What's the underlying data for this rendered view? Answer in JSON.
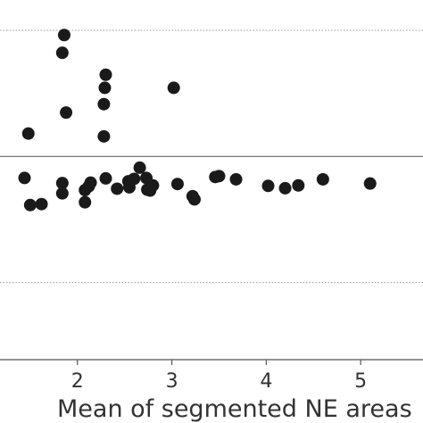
{
  "chart_data": {
    "type": "scatter",
    "xlabel": "Mean of segmented NE areas",
    "x_ticks": [
      2,
      3,
      4,
      5
    ],
    "xlim": [
      1.18,
      5.66
    ],
    "ylim": [
      -0.435,
      0.335
    ],
    "reference_lines": [
      {
        "y": 0.0,
        "style": "solid"
      },
      {
        "y": 0.27,
        "style": "dotted"
      },
      {
        "y": -0.27,
        "style": "dotted"
      }
    ],
    "color": "#1a1a1a",
    "points": [
      {
        "x": 1.86,
        "y": 0.26
      },
      {
        "x": 1.84,
        "y": 0.222
      },
      {
        "x": 2.3,
        "y": 0.175
      },
      {
        "x": 2.29,
        "y": 0.147
      },
      {
        "x": 3.02,
        "y": 0.147
      },
      {
        "x": 2.28,
        "y": 0.112
      },
      {
        "x": 1.88,
        "y": 0.094
      },
      {
        "x": 1.48,
        "y": 0.049
      },
      {
        "x": 2.28,
        "y": 0.043
      },
      {
        "x": 2.66,
        "y": -0.024
      },
      {
        "x": 1.44,
        "y": -0.046
      },
      {
        "x": 2.3,
        "y": -0.047
      },
      {
        "x": 2.73,
        "y": -0.046
      },
      {
        "x": 3.46,
        "y": -0.044
      },
      {
        "x": 3.5,
        "y": -0.042
      },
      {
        "x": 3.68,
        "y": -0.049
      },
      {
        "x": 4.6,
        "y": -0.049
      },
      {
        "x": 1.84,
        "y": -0.057
      },
      {
        "x": 2.14,
        "y": -0.056
      },
      {
        "x": 2.54,
        "y": -0.053
      },
      {
        "x": 2.6,
        "y": -0.048
      },
      {
        "x": 2.8,
        "y": -0.062
      },
      {
        "x": 3.06,
        "y": -0.059
      },
      {
        "x": 4.02,
        "y": -0.063
      },
      {
        "x": 4.34,
        "y": -0.062
      },
      {
        "x": 5.1,
        "y": -0.058
      },
      {
        "x": 2.12,
        "y": -0.064
      },
      {
        "x": 2.08,
        "y": -0.072
      },
      {
        "x": 2.42,
        "y": -0.069
      },
      {
        "x": 2.55,
        "y": -0.066
      },
      {
        "x": 2.74,
        "y": -0.071
      },
      {
        "x": 2.77,
        "y": -0.073
      },
      {
        "x": 4.2,
        "y": -0.068
      },
      {
        "x": 1.84,
        "y": -0.079
      },
      {
        "x": 3.22,
        "y": -0.085
      },
      {
        "x": 3.24,
        "y": -0.092
      },
      {
        "x": 2.08,
        "y": -0.098
      },
      {
        "x": 1.5,
        "y": -0.104
      },
      {
        "x": 1.62,
        "y": -0.102
      }
    ]
  }
}
